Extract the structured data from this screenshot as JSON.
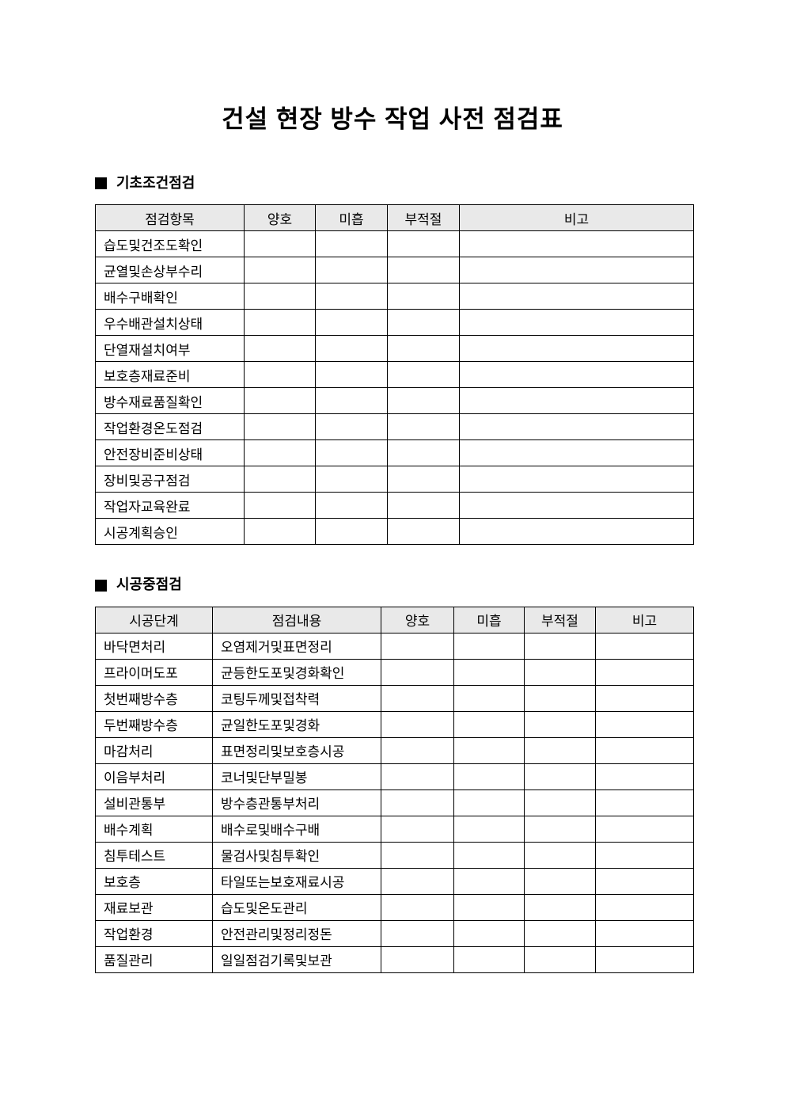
{
  "document": {
    "title": "건설 현장 방수 작업 사전 점검표"
  },
  "sections": [
    {
      "heading": "기초조건점검",
      "columns": [
        "점검항목",
        "양호",
        "미흡",
        "부적절",
        "비고"
      ],
      "rows": [
        {
          "item": "습도및건조도확인"
        },
        {
          "item": "균열및손상부수리"
        },
        {
          "item": "배수구배확인"
        },
        {
          "item": "우수배관설치상태"
        },
        {
          "item": "단열재설치여부"
        },
        {
          "item": "보호층재료준비"
        },
        {
          "item": "방수재료품질확인"
        },
        {
          "item": "작업환경온도점검"
        },
        {
          "item": "안전장비준비상태"
        },
        {
          "item": "장비및공구점검"
        },
        {
          "item": "작업자교육완료"
        },
        {
          "item": "시공계획승인"
        }
      ]
    },
    {
      "heading": "시공중점검",
      "columns": [
        "시공단계",
        "점검내용",
        "양호",
        "미흡",
        "부적절",
        "비고"
      ],
      "rows": [
        {
          "stage": "바닥면처리",
          "content": "오염제거및표면정리"
        },
        {
          "stage": "프라이머도포",
          "content": "균등한도포및경화확인"
        },
        {
          "stage": "첫번째방수층",
          "content": "코팅두께및접착력"
        },
        {
          "stage": "두번째방수층",
          "content": "균일한도포및경화"
        },
        {
          "stage": "마감처리",
          "content": "표면정리및보호층시공"
        },
        {
          "stage": "이음부처리",
          "content": "코너및단부밀봉"
        },
        {
          "stage": "설비관통부",
          "content": "방수층관통부처리"
        },
        {
          "stage": "배수계획",
          "content": "배수로및배수구배"
        },
        {
          "stage": "침투테스트",
          "content": "물검사및침투확인"
        },
        {
          "stage": "보호층",
          "content": "타일또는보호재료시공"
        },
        {
          "stage": "재료보관",
          "content": "습도및온도관리"
        },
        {
          "stage": "작업환경",
          "content": "안전관리및정리정돈"
        },
        {
          "stage": "품질관리",
          "content": "일일점검기록및보관"
        }
      ]
    }
  ]
}
